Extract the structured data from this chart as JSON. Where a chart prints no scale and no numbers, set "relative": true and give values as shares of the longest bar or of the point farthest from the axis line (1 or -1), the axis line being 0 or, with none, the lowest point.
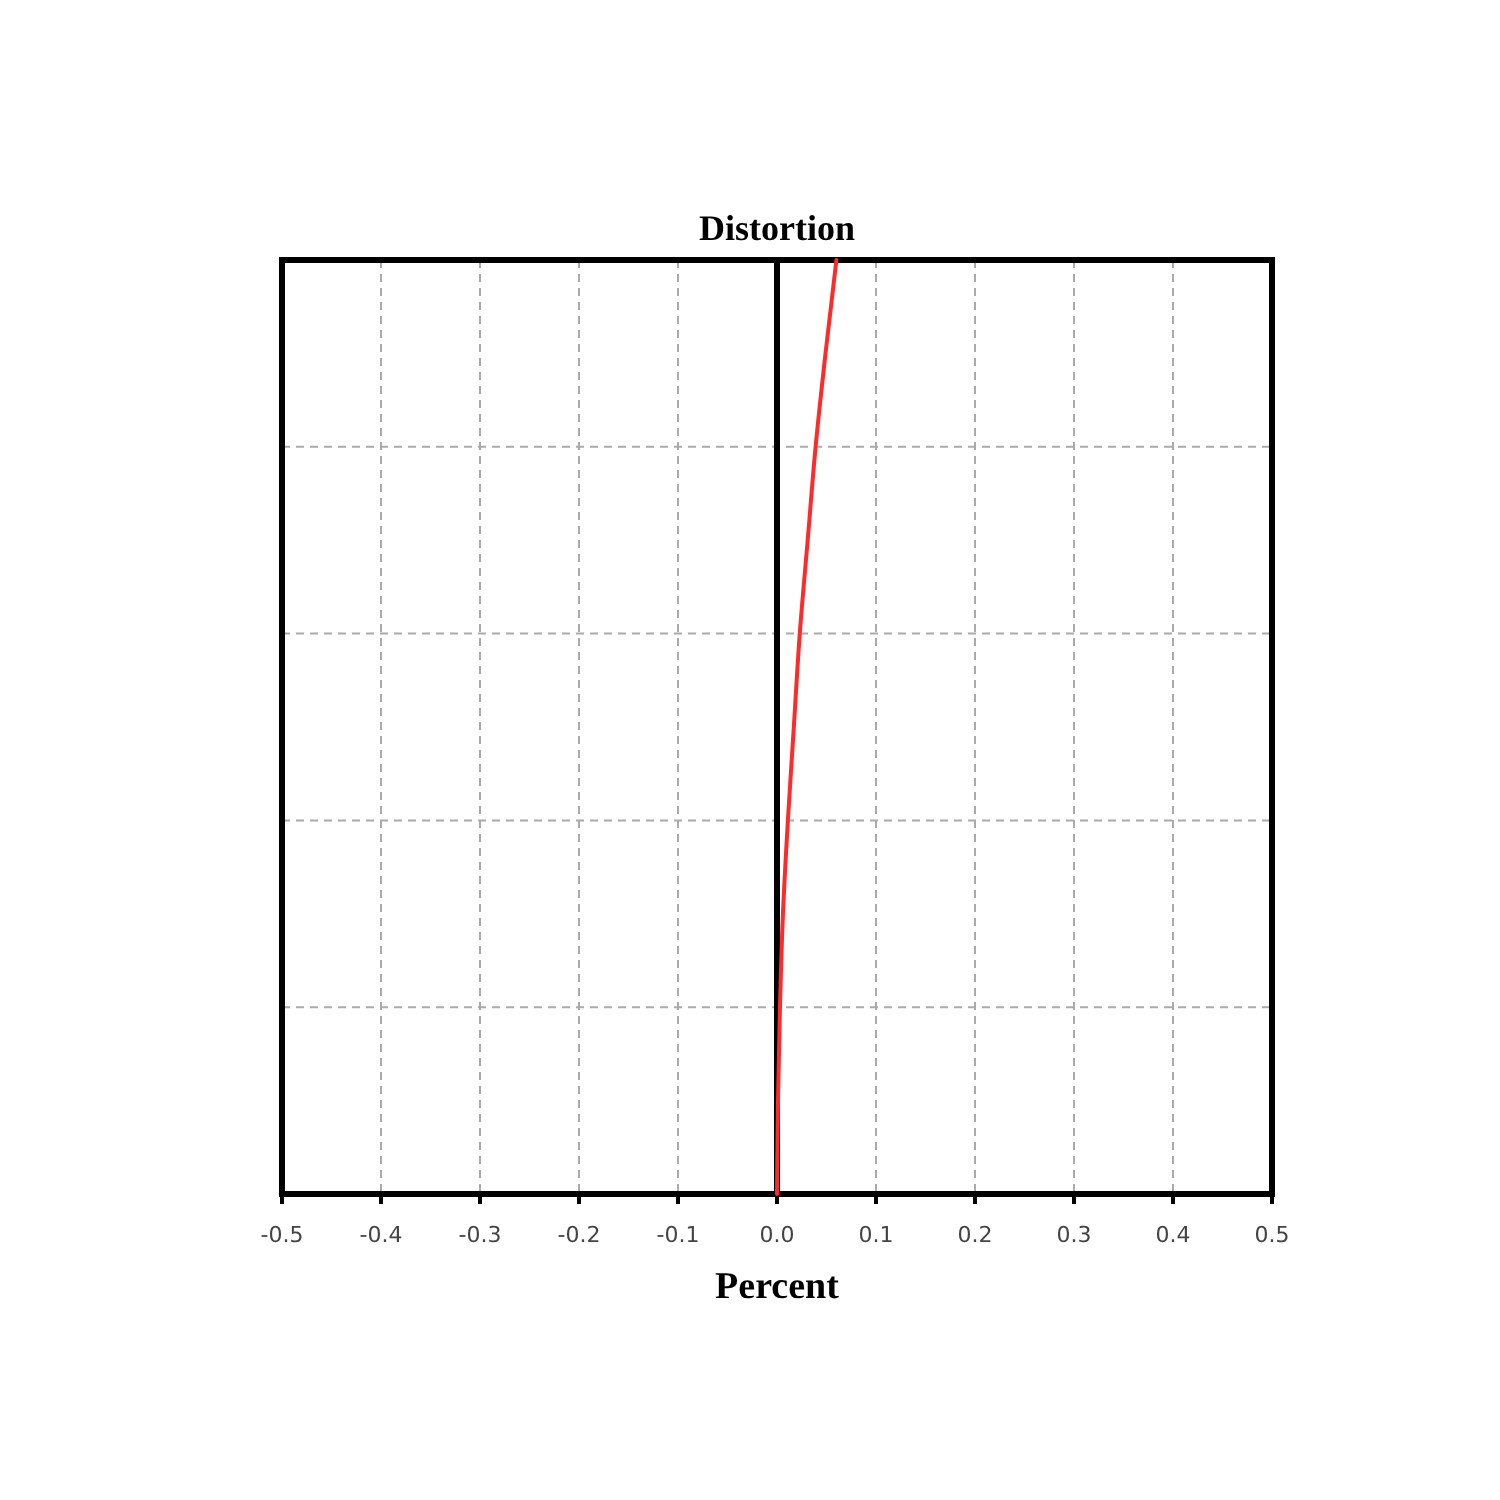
{
  "chart_data": {
    "type": "line",
    "title": "Distortion",
    "xlabel": "Percent",
    "relative": true,
    "xlim": [
      -0.5,
      0.5
    ],
    "xticks": [
      {
        "value": -0.5,
        "label": "-0.5"
      },
      {
        "value": -0.4,
        "label": "-0.4"
      },
      {
        "value": -0.3,
        "label": "-0.3"
      },
      {
        "value": -0.2,
        "label": "-0.2"
      },
      {
        "value": -0.1,
        "label": "-0.1"
      },
      {
        "value": 0,
        "label": "0.0"
      },
      {
        "value": 0.1,
        "label": "0.1"
      },
      {
        "value": 0.2,
        "label": "0.2"
      },
      {
        "value": 0.3,
        "label": "0.3"
      },
      {
        "value": 0.4,
        "label": "0.4"
      },
      {
        "value": 0.5,
        "label": "0.5"
      }
    ],
    "grid": true,
    "line_style": "solid",
    "marker": "none",
    "series": [
      {
        "color": "#ff2a2a",
        "x": [
          0,
          0.001,
          0.003,
          0.006,
          0.011,
          0.017,
          0.023,
          0.031,
          0.039,
          0.049,
          0.06
        ],
        "values": [
          0,
          0.1,
          0.2,
          0.3,
          0.4,
          0.5,
          0.6,
          0.7,
          0.8,
          0.9,
          1
        ]
      }
    ]
  }
}
